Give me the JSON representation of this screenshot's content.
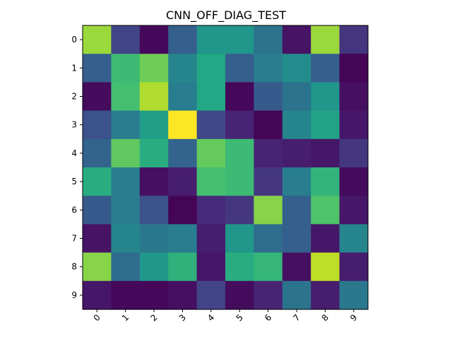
{
  "chart_data": {
    "type": "heatmap",
    "title": "CNN_OFF_DIAG_TEST",
    "x_ticks": [
      "0",
      "1",
      "2",
      "3",
      "4",
      "5",
      "6",
      "7",
      "8",
      "9"
    ],
    "y_ticks": [
      "0",
      "1",
      "2",
      "3",
      "4",
      "5",
      "6",
      "7",
      "8",
      "9"
    ],
    "colormap": "viridis",
    "value_range": [
      0,
      1
    ],
    "grid": false,
    "x_tick_rotation_deg": 45,
    "values": [
      [
        0.85,
        0.2,
        0.02,
        0.3,
        0.52,
        0.52,
        0.38,
        0.05,
        0.85,
        0.15
      ],
      [
        0.3,
        0.68,
        0.78,
        0.45,
        0.6,
        0.3,
        0.42,
        0.48,
        0.3,
        0.01
      ],
      [
        0.03,
        0.7,
        0.88,
        0.42,
        0.6,
        0.02,
        0.28,
        0.38,
        0.52,
        0.04
      ],
      [
        0.25,
        0.42,
        0.55,
        1.0,
        0.22,
        0.1,
        0.01,
        0.45,
        0.58,
        0.06
      ],
      [
        0.32,
        0.75,
        0.62,
        0.32,
        0.76,
        0.68,
        0.1,
        0.08,
        0.06,
        0.16
      ],
      [
        0.62,
        0.42,
        0.04,
        0.08,
        0.7,
        0.68,
        0.16,
        0.42,
        0.65,
        0.03
      ],
      [
        0.28,
        0.42,
        0.25,
        0.01,
        0.12,
        0.16,
        0.82,
        0.3,
        0.72,
        0.06
      ],
      [
        0.05,
        0.45,
        0.4,
        0.42,
        0.08,
        0.52,
        0.35,
        0.3,
        0.06,
        0.45
      ],
      [
        0.82,
        0.35,
        0.52,
        0.64,
        0.06,
        0.62,
        0.66,
        0.04,
        0.9,
        0.08
      ],
      [
        0.06,
        0.02,
        0.02,
        0.04,
        0.2,
        0.03,
        0.1,
        0.38,
        0.08,
        0.4
      ]
    ]
  }
}
